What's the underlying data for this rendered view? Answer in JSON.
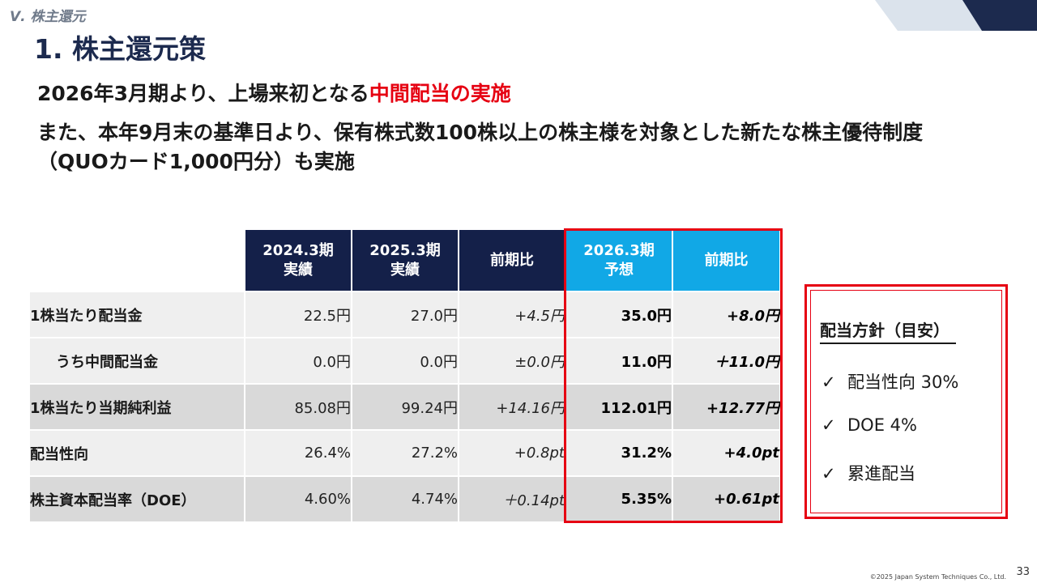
{
  "section_label": "Ⅴ. 株主還元",
  "slide_title": "1. 株主還元策",
  "headline1": {
    "prefix": "2026年3月期より、上場来初となる",
    "highlight": "中間配当の実施"
  },
  "headline2": "また、本年9月末の基準日より、保有株式数100株以上の株主様を対象とした新たな株主優待制度（QUOカード1,000円分）も実施",
  "table": {
    "headers": [
      "2024.3期\n実績",
      "2025.3期\n実績",
      "前期比",
      "2026.3期\n予想",
      "前期比"
    ],
    "rows": [
      {
        "label": "1株当たり配当金",
        "v2024": "22.5円",
        "v2025": "27.0円",
        "yoy": "+4.5円",
        "f2026": "35.0円",
        "fyoy": "+8.0円"
      },
      {
        "label": "うち中間配当金",
        "v2024": "0.0円",
        "v2025": "0.0円",
        "yoy": "±0.0円",
        "f2026": "11.0円",
        "fyoy": "＋11.0円"
      },
      {
        "label": "1株当たり当期純利益",
        "v2024": "85.08円",
        "v2025": "99.24円",
        "yoy": "+14.16円",
        "f2026": "112.01円",
        "fyoy": "+12.77円"
      },
      {
        "label": "配当性向",
        "v2024": "26.4%",
        "v2025": "27.2%",
        "yoy": "+0.8pt",
        "f2026": "31.2%",
        "fyoy": "+4.0pt"
      },
      {
        "label": "株主資本配当率（DOE）",
        "v2024": "4.60%",
        "v2025": "4.74%",
        "yoy": "＋0.14pt",
        "f2026": "5.35%",
        "fyoy": "+0.61pt"
      }
    ]
  },
  "policy": {
    "title": "配当方針（目安）",
    "check_symbol": "✓",
    "items": [
      "配当性向 30%",
      "DOE 4%",
      "累進配当"
    ]
  },
  "footer": {
    "copyright": "©2025 Japan System Techniques Co., Ltd.",
    "page_number": "33"
  },
  "colors": {
    "navy": "#142049",
    "cyan": "#11a8e6",
    "red": "#e60012"
  }
}
